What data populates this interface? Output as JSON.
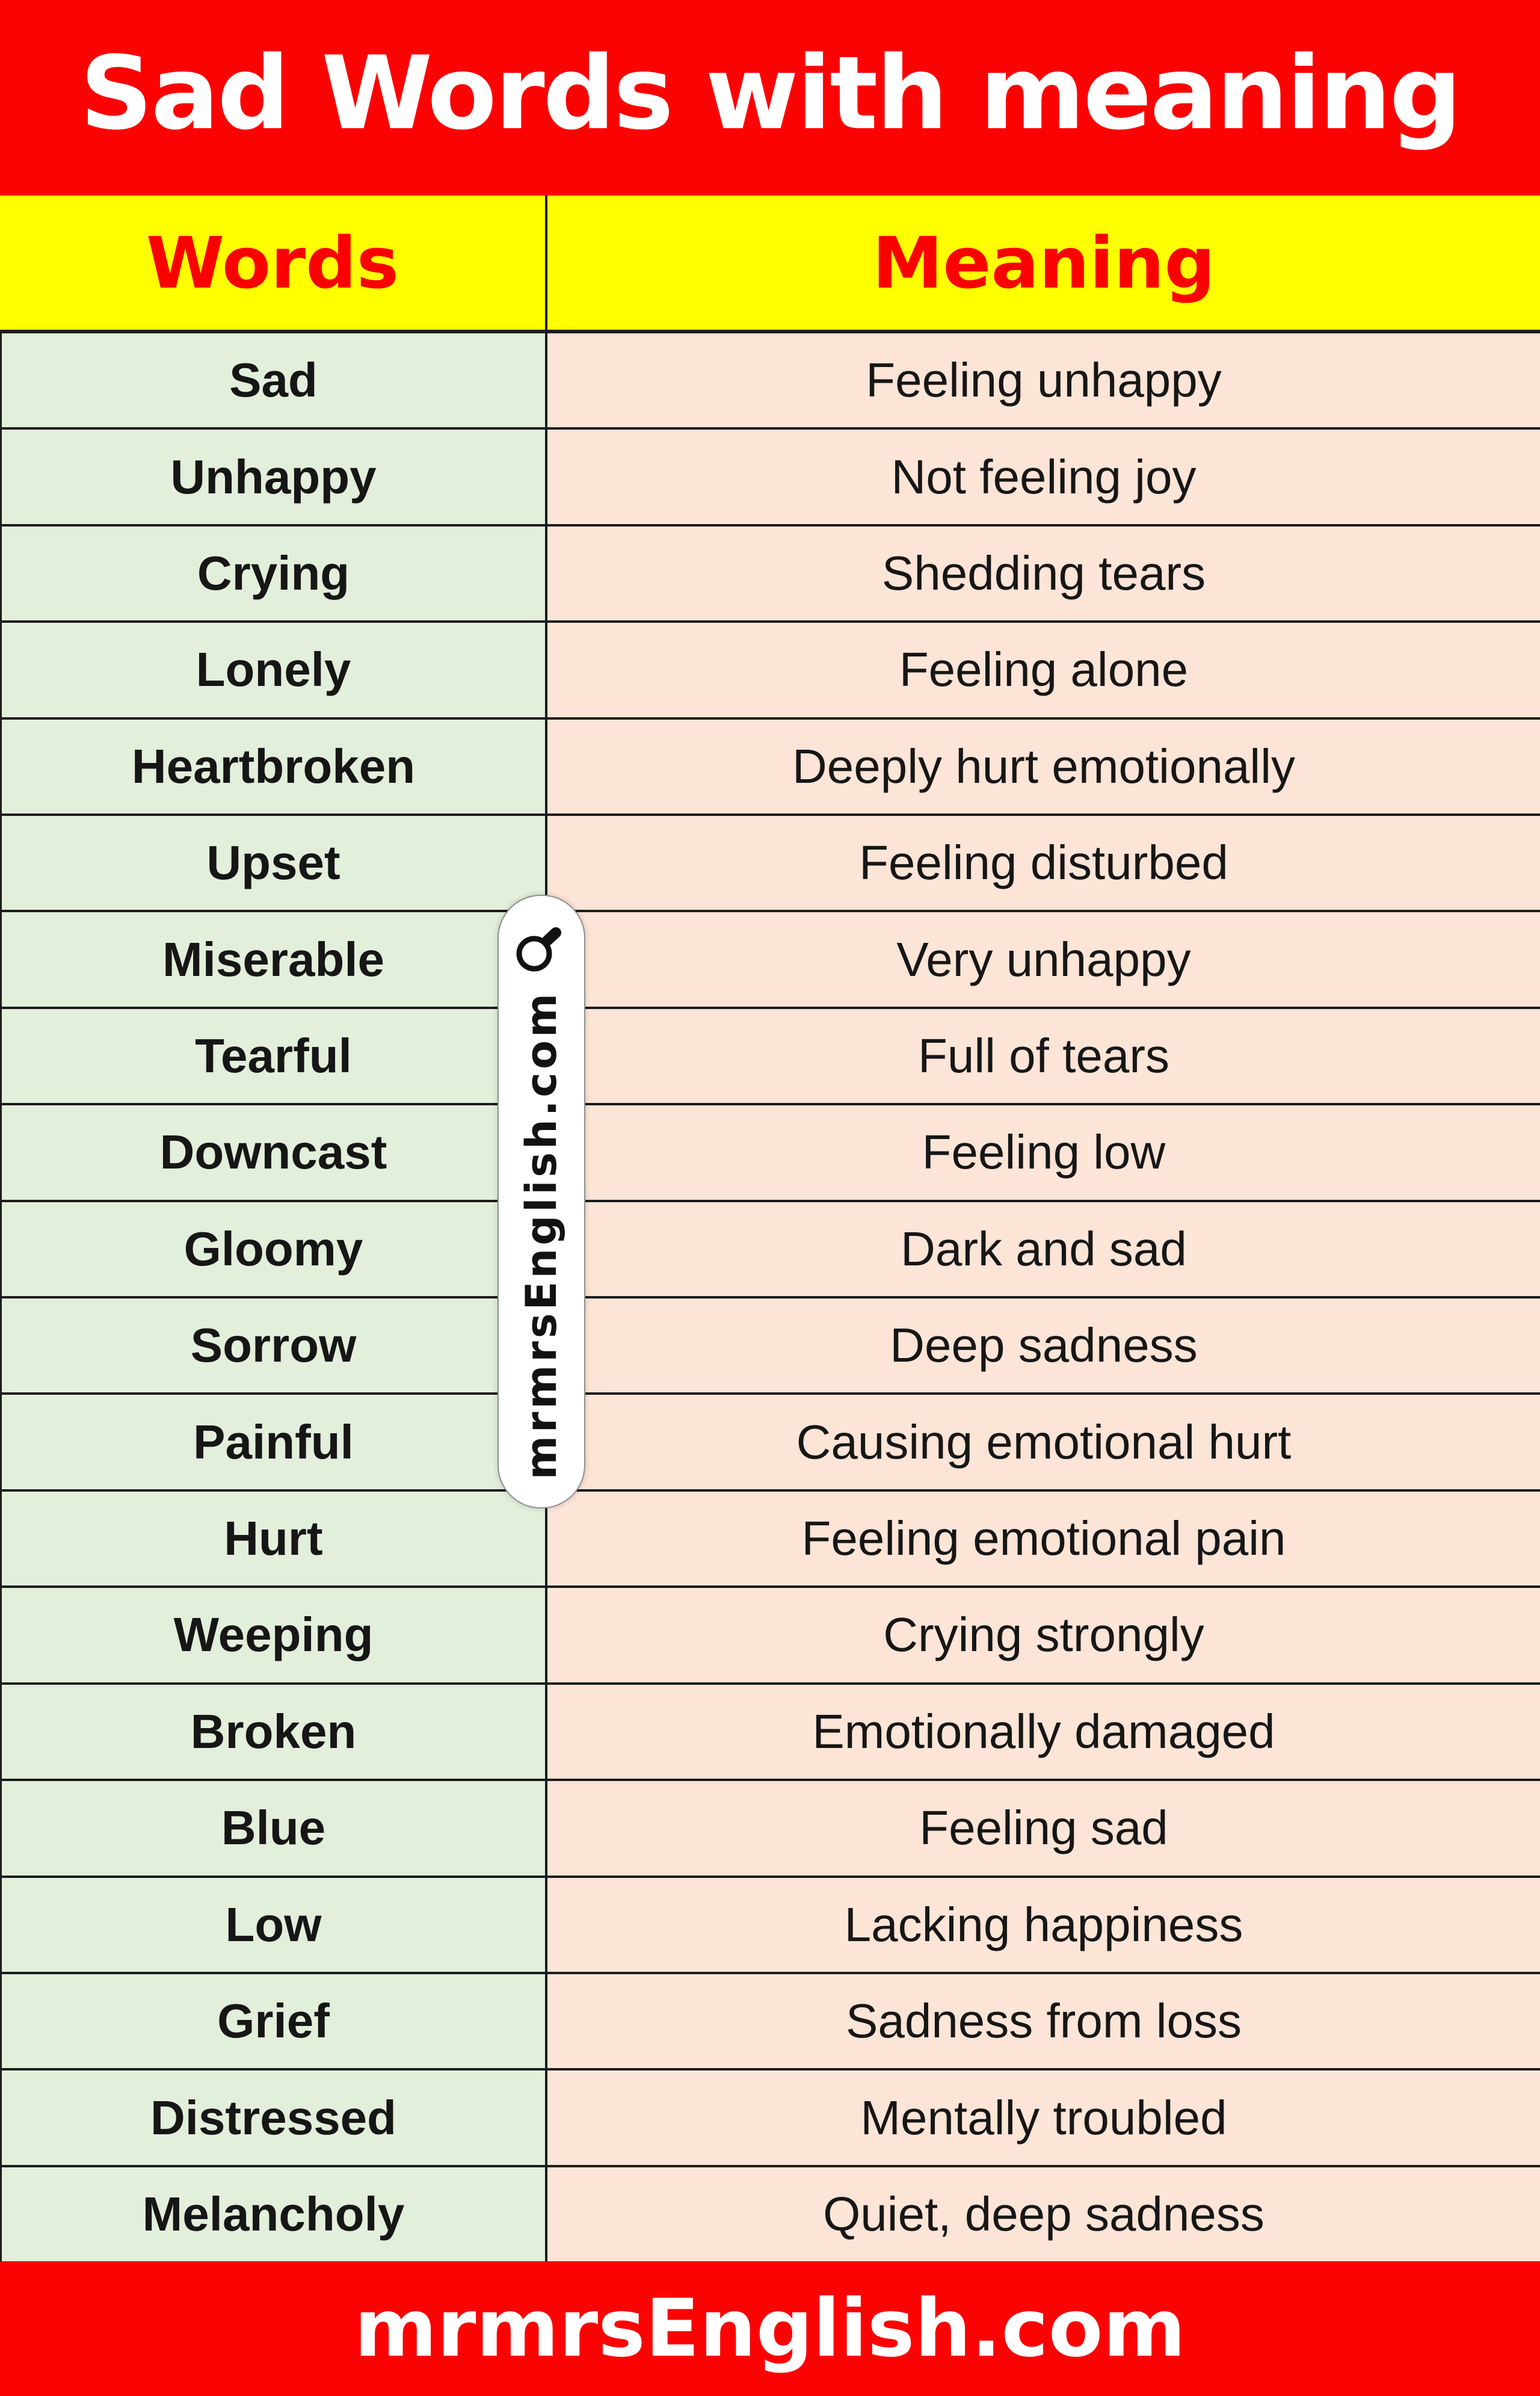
{
  "title": "Sad Words with meaning",
  "header": {
    "words_label": "Words",
    "meaning_label": "Meaning"
  },
  "rows": [
    {
      "word": "Sad",
      "meaning": "Feeling unhappy"
    },
    {
      "word": "Unhappy",
      "meaning": "Not feeling joy"
    },
    {
      "word": "Crying",
      "meaning": "Shedding tears"
    },
    {
      "word": "Lonely",
      "meaning": "Feeling alone"
    },
    {
      "word": "Heartbroken",
      "meaning": "Deeply hurt emotionally"
    },
    {
      "word": "Upset",
      "meaning": "Feeling disturbed"
    },
    {
      "word": "Miserable",
      "meaning": "Very unhappy"
    },
    {
      "word": "Tearful",
      "meaning": "Full of tears"
    },
    {
      "word": "Downcast",
      "meaning": "Feeling low"
    },
    {
      "word": "Gloomy",
      "meaning": "Dark and sad"
    },
    {
      "word": "Sorrow",
      "meaning": "Deep sadness"
    },
    {
      "word": "Painful",
      "meaning": "Causing emotional hurt"
    },
    {
      "word": "Hurt",
      "meaning": "Feeling emotional pain"
    },
    {
      "word": "Weeping",
      "meaning": "Crying strongly"
    },
    {
      "word": "Broken",
      "meaning": "Emotionally damaged"
    },
    {
      "word": "Blue",
      "meaning": "Feeling sad"
    },
    {
      "word": "Low",
      "meaning": "Lacking happiness"
    },
    {
      "word": "Grief",
      "meaning": "Sadness from loss"
    },
    {
      "word": "Distressed",
      "meaning": "Mentally troubled"
    },
    {
      "word": "Melancholy",
      "meaning": "Quiet, deep sadness"
    }
  ],
  "watermark": {
    "text": "mrmrsEnglish.com",
    "icon": "magnifier-icon"
  },
  "footer": {
    "site": "mrmrsEnglish.com"
  },
  "colors": {
    "red": "#fb0303",
    "yellow": "#ffff00",
    "green": "#e2efda",
    "peach": "#fce4d6",
    "line": "#1c1c1c",
    "ink": "#161616",
    "header-red": "#fa0000"
  }
}
